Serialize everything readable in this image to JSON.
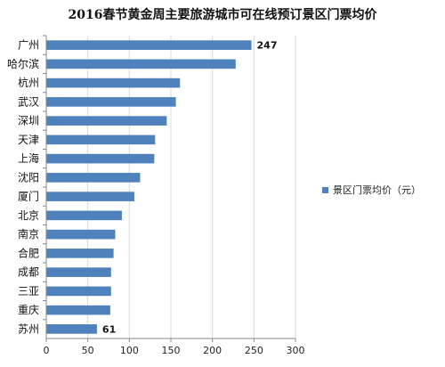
{
  "chart_data": {
    "type": "bar",
    "orientation": "horizontal",
    "title": "2016春节黄金周主要旅游城市可在线预订景区门票均价",
    "categories": [
      "广州",
      "哈尔滨",
      "杭州",
      "武汉",
      "深圳",
      "天津",
      "上海",
      "沈阳",
      "厦门",
      "北京",
      "南京",
      "合肥",
      "成都",
      "三亚",
      "重庆",
      "苏州"
    ],
    "series": [
      {
        "name": "景区门票均价（元）",
        "color": "#4f81bd",
        "values": [
          247,
          228,
          161,
          156,
          145,
          131,
          130,
          113,
          106,
          91,
          83,
          81,
          78,
          78,
          77,
          61
        ]
      }
    ],
    "data_labels": [
      {
        "category": "广州",
        "text": "247"
      },
      {
        "category": "苏州",
        "text": "61"
      }
    ],
    "xlim": [
      0,
      300
    ],
    "xticks": [
      "0",
      "50",
      "100",
      "150",
      "200",
      "250",
      "300"
    ],
    "grid": true,
    "legend_position": "right"
  }
}
